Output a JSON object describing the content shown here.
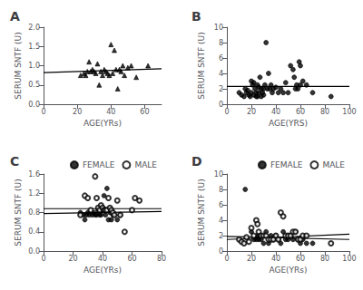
{
  "chart_data": [
    {
      "type": "scatter",
      "title": "A",
      "xlabel": "AGE(YRs)",
      "ylabel": "SERUM SNTF (U)",
      "xlim": [
        0,
        70
      ],
      "ylim": [
        0.0,
        2.0
      ],
      "xticks": [
        0,
        20,
        40,
        60
      ],
      "yticks": [
        {
          "value": 0.0,
          "label": "0.0"
        },
        0.5,
        {
          "value": 1.0,
          "label": "1.0"
        },
        1.5,
        {
          "value": 2.0,
          "label": "2.0"
        }
      ],
      "grid": false,
      "series": [
        {
          "type": "scatter",
          "marker": "triangle",
          "color": "#000000",
          "x": [
            22,
            24,
            25,
            26,
            27,
            28,
            29,
            30,
            31,
            32,
            33,
            34,
            35,
            36,
            37,
            38,
            39,
            40,
            41,
            42,
            43,
            44,
            45,
            46,
            47,
            48,
            50,
            52,
            55,
            62
          ],
          "values": [
            0.75,
            0.8,
            0.75,
            0.85,
            1.1,
            0.85,
            0.9,
            0.85,
            0.8,
            1.05,
            0.5,
            0.85,
            0.75,
            0.9,
            0.85,
            0.8,
            0.75,
            1.55,
            0.8,
            1.4,
            0.9,
            0.4,
            0.9,
            0.85,
            1.0,
            0.75,
            0.95,
            1.0,
            0.7,
            1.0
          ]
        },
        {
          "type": "line",
          "color": "#000000",
          "x": [
            0,
            70
          ],
          "values": [
            0.82,
            0.92
          ]
        }
      ]
    },
    {
      "type": "scatter",
      "title": "B",
      "xlabel": "AGE(YRS)",
      "ylabel": "SERUM SNTF (U)",
      "xlim": [
        0,
        100
      ],
      "ylim": [
        0,
        10
      ],
      "xticks": [
        0,
        20,
        40,
        60,
        80,
        100
      ],
      "yticks": [
        0,
        2,
        4,
        6,
        8,
        10
      ],
      "grid": false,
      "series": [
        {
          "type": "scatter",
          "marker": "circle",
          "color": "#000000",
          "x": [
            10,
            12,
            14,
            15,
            16,
            17,
            18,
            19,
            20,
            20,
            21,
            22,
            22,
            23,
            24,
            24,
            25,
            25,
            26,
            26,
            27,
            28,
            28,
            29,
            30,
            30,
            31,
            32,
            33,
            34,
            35,
            36,
            37,
            38,
            40,
            42,
            44,
            46,
            48,
            50,
            52,
            54,
            55,
            56,
            57,
            58,
            59,
            60,
            60,
            62,
            65,
            70,
            85
          ],
          "values": [
            1.5,
            1.2,
            1.0,
            2.0,
            1.5,
            1.8,
            1.2,
            1.0,
            3.0,
            1.5,
            2.5,
            2.8,
            1.2,
            2.0,
            1.5,
            1.0,
            2.5,
            1.0,
            2.2,
            1.5,
            3.5,
            2.0,
            1.0,
            1.5,
            2.0,
            1.2,
            2.5,
            8.0,
            2.0,
            4.0,
            2.0,
            2.5,
            1.5,
            2.0,
            2.2,
            1.5,
            2.0,
            1.5,
            2.8,
            1.5,
            5.0,
            4.5,
            3.5,
            2.0,
            2.5,
            2.0,
            5.5,
            2.5,
            5.0,
            3.0,
            2.5,
            1.5,
            1.0
          ]
        },
        {
          "type": "line",
          "color": "#000000",
          "x": [
            0,
            100
          ],
          "values": [
            2.3,
            2.3
          ]
        }
      ]
    },
    {
      "type": "scatter",
      "title": "C",
      "xlabel": "AGE(YRs)",
      "ylabel": "SERUM SNTF (U)",
      "xlim": [
        0,
        80
      ],
      "ylim": [
        0.0,
        1.6
      ],
      "xticks": [
        0,
        20,
        40,
        60,
        80
      ],
      "yticks": [
        {
          "value": 0.0,
          "label": "0.0"
        },
        0.4,
        0.8,
        1.2,
        1.6
      ],
      "grid": false,
      "legend": "upper right",
      "series": [
        {
          "name": "FEMALE",
          "type": "scatter",
          "marker": "circle",
          "color": "#000000",
          "x": [
            25,
            27,
            28,
            29,
            30,
            31,
            33,
            34,
            35,
            36,
            37,
            38,
            39,
            40,
            41,
            42,
            43,
            44,
            45,
            46,
            47,
            48,
            50,
            52
          ],
          "values": [
            0.8,
            0.75,
            0.65,
            0.75,
            0.8,
            0.75,
            0.75,
            0.8,
            0.75,
            0.75,
            0.85,
            0.75,
            0.75,
            0.85,
            1.15,
            0.75,
            1.3,
            0.65,
            0.8,
            0.65,
            0.75,
            0.75,
            0.65,
            0.75
          ]
        },
        {
          "name": "MALE",
          "type": "scatter",
          "marker": "open_circle",
          "color": "#000000",
          "x": [
            25,
            28,
            30,
            32,
            35,
            36,
            37,
            38,
            39,
            40,
            41,
            42,
            43,
            44,
            45,
            46,
            47,
            48,
            50,
            52,
            55,
            60,
            62,
            65
          ],
          "values": [
            0.75,
            1.15,
            1.1,
            0.85,
            1.55,
            1.1,
            0.9,
            0.85,
            0.95,
            0.9,
            0.85,
            0.85,
            0.85,
            1.1,
            0.9,
            0.85,
            0.8,
            0.75,
            1.05,
            0.75,
            0.4,
            0.85,
            1.1,
            1.05
          ]
        },
        {
          "type": "line",
          "color": "#000000",
          "x": [
            0,
            80
          ],
          "values": [
            0.78,
            0.82
          ]
        },
        {
          "type": "line",
          "color": "#000000",
          "x": [
            0,
            80
          ],
          "values": [
            0.88,
            0.88
          ]
        }
      ]
    },
    {
      "type": "scatter",
      "title": "D",
      "xlabel": "AGE(YRs)",
      "ylabel": "SERUM SNTF (U)",
      "xlim": [
        0,
        100
      ],
      "ylim": [
        0,
        10
      ],
      "xticks": [
        0,
        20,
        40,
        60,
        80,
        100
      ],
      "yticks": [
        0,
        2,
        4,
        6,
        8,
        10
      ],
      "grid": false,
      "legend": "upper right",
      "series": [
        {
          "name": "FEMALE",
          "type": "scatter",
          "marker": "circle",
          "color": "#000000",
          "x": [
            15,
            20,
            22,
            24,
            25,
            26,
            27,
            28,
            30,
            32,
            34,
            36,
            38,
            40,
            42,
            44,
            46,
            48,
            50,
            52,
            54,
            56,
            58,
            60,
            62,
            65,
            70
          ],
          "values": [
            8.0,
            2.5,
            1.5,
            1.5,
            2.0,
            1.5,
            2.0,
            1.5,
            1.0,
            2.5,
            1.0,
            2.0,
            1.5,
            2.0,
            1.5,
            1.0,
            2.5,
            1.5,
            1.5,
            2.0,
            1.5,
            2.5,
            1.5,
            1.0,
            1.5,
            1.0,
            1.0
          ]
        },
        {
          "name": "MALE",
          "type": "scatter",
          "marker": "open_circle",
          "color": "#000000",
          "x": [
            10,
            12,
            14,
            16,
            18,
            20,
            22,
            24,
            25,
            26,
            28,
            30,
            32,
            34,
            36,
            38,
            40,
            42,
            44,
            46,
            48,
            50,
            52,
            54,
            56,
            58,
            60,
            62,
            65,
            85
          ],
          "values": [
            1.5,
            1.2,
            1.0,
            1.8,
            1.2,
            3.0,
            2.0,
            4.0,
            3.5,
            2.5,
            2.0,
            2.0,
            2.0,
            1.5,
            1.5,
            1.5,
            2.0,
            1.5,
            5.0,
            4.5,
            2.0,
            2.0,
            2.0,
            2.5,
            2.5,
            1.5,
            1.5,
            2.0,
            2.0,
            1.0
          ]
        },
        {
          "type": "line",
          "color": "#000000",
          "x": [
            0,
            100
          ],
          "values": [
            1.9,
            1.5
          ]
        },
        {
          "type": "line",
          "color": "#000000",
          "x": [
            0,
            100
          ],
          "values": [
            1.5,
            2.2
          ]
        }
      ]
    }
  ]
}
